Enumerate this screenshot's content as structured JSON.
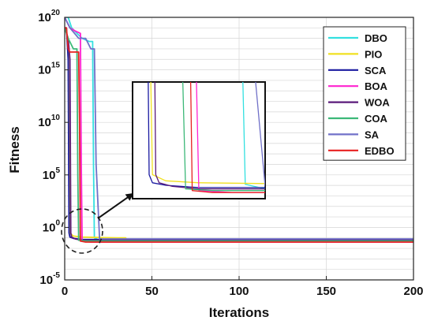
{
  "chart_data": {
    "type": "line",
    "title": "",
    "xlabel": "Iterations",
    "ylabel": "Fitness",
    "x_scale": "linear",
    "y_scale": "log",
    "xlim": [
      0,
      200
    ],
    "ylim": [
      1e-05,
      1e+20
    ],
    "x_ticks": [
      {
        "value": 0,
        "label": "0"
      },
      {
        "value": 50,
        "label": "50"
      },
      {
        "value": 100,
        "label": "100"
      },
      {
        "value": 150,
        "label": "150"
      },
      {
        "value": 200,
        "label": "200"
      }
    ],
    "y_ticks": [
      {
        "value": 1e-05,
        "base": "10",
        "exp": "-5"
      },
      {
        "value": 1,
        "base": "10",
        "exp": "0"
      },
      {
        "value": 100000.0,
        "base": "10",
        "exp": "5"
      },
      {
        "value": 10000000000.0,
        "base": "10",
        "exp": "10"
      },
      {
        "value": 1000000000000000.0,
        "base": "10",
        "exp": "15"
      },
      {
        "value": 1e+20,
        "base": "10",
        "exp": "20"
      }
    ],
    "grid": true,
    "legend_position": "top-right",
    "series": [
      {
        "name": "DBO",
        "color": "#33e0e0",
        "x": [
          1,
          2,
          4,
          7,
          10,
          14,
          16,
          16.5,
          17,
          20,
          200
        ],
        "y": [
          1e+20,
          1e+20,
          1e+19,
          3e+18,
          1e+18,
          5e+17,
          5e+17,
          1000000.0,
          0.1,
          0.06,
          0.06
        ]
      },
      {
        "name": "PIO",
        "color": "#f0e020",
        "x": [
          0,
          2,
          3,
          5,
          10,
          20,
          30,
          35,
          36,
          200
        ],
        "y": [
          1e+19,
          1e+18,
          0.3,
          0.15,
          0.12,
          0.11,
          0.1,
          0.1,
          0.05,
          0.05
        ]
      },
      {
        "name": "SCA",
        "color": "#1a1aa0",
        "x": [
          0,
          1,
          2,
          2.5,
          3,
          5,
          10,
          200
        ],
        "y": [
          1e+19,
          1e+19,
          1e+16,
          0.3,
          0.12,
          0.09,
          0.07,
          0.07
        ]
      },
      {
        "name": "BOA",
        "color": "#ff22d0",
        "x": [
          0,
          3,
          6,
          9,
          9.5,
          10,
          15,
          200
        ],
        "y": [
          1e+20,
          1e+19,
          5e+18,
          3e+18,
          1000000.0,
          0.05,
          0.04,
          0.04
        ]
      },
      {
        "name": "WOA",
        "color": "#5a1a7a",
        "x": [
          0,
          2,
          3,
          3.5,
          4,
          6,
          10,
          200
        ],
        "y": [
          1e+19,
          1e+18,
          1e+16,
          0.3,
          0.12,
          0.08,
          0.06,
          0.06
        ]
      },
      {
        "name": "COA",
        "color": "#3cb878",
        "x": [
          0,
          2,
          5,
          7,
          7.5,
          8,
          12,
          200
        ],
        "y": [
          1e+19,
          1e+18,
          1e+17,
          1e+17,
          100000.0,
          0.06,
          0.05,
          0.05
        ]
      },
      {
        "name": "SA",
        "color": "#7070c8",
        "x": [
          0,
          3,
          8,
          12,
          15,
          17,
          18,
          20,
          200
        ],
        "y": [
          1e+20,
          1e+19,
          1e+18,
          1e+18,
          1e+17,
          1e+17,
          1000000.0,
          0.08,
          0.08
        ]
      },
      {
        "name": "EDBO",
        "color": "#e82020",
        "x": [
          0,
          1,
          2,
          3,
          8,
          8.5,
          9,
          12,
          200
        ],
        "y": [
          1e+19,
          1e+19,
          1e+17,
          5e+16,
          5e+16,
          10000000000.0,
          0.05,
          0.04,
          0.04
        ]
      }
    ]
  }
}
